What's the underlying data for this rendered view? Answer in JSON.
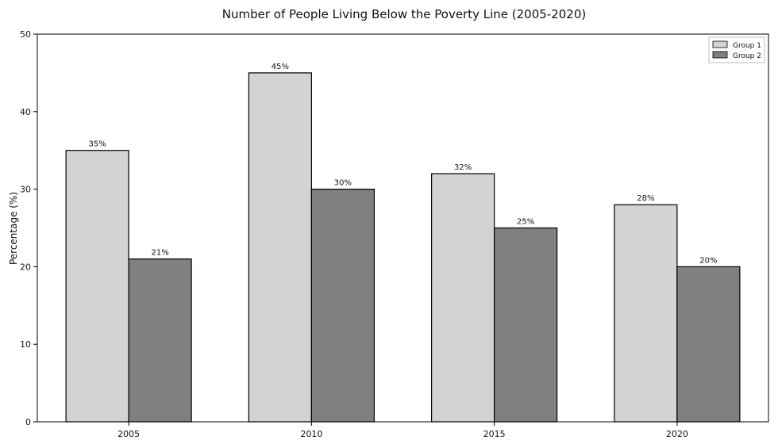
{
  "chart_data": {
    "type": "bar",
    "title": "Number of People Living Below the Poverty Line (2005-2020)",
    "xlabel": "",
    "ylabel": "Percentage (%)",
    "categories": [
      "2005",
      "2010",
      "2015",
      "2020"
    ],
    "series": [
      {
        "name": "Group 1",
        "color": "#d3d3d3",
        "values": [
          35,
          45,
          32,
          28
        ],
        "labels": [
          "35%",
          "45%",
          "32%",
          "28%"
        ]
      },
      {
        "name": "Group 2",
        "color": "#808080",
        "values": [
          21,
          30,
          25,
          20
        ],
        "labels": [
          "21%",
          "30%",
          "25%",
          "20%"
        ]
      }
    ],
    "ylim": [
      0,
      50
    ],
    "yticks": [
      0,
      10,
      20,
      30,
      40,
      50
    ],
    "grid": false,
    "legend_position": "top-right"
  }
}
